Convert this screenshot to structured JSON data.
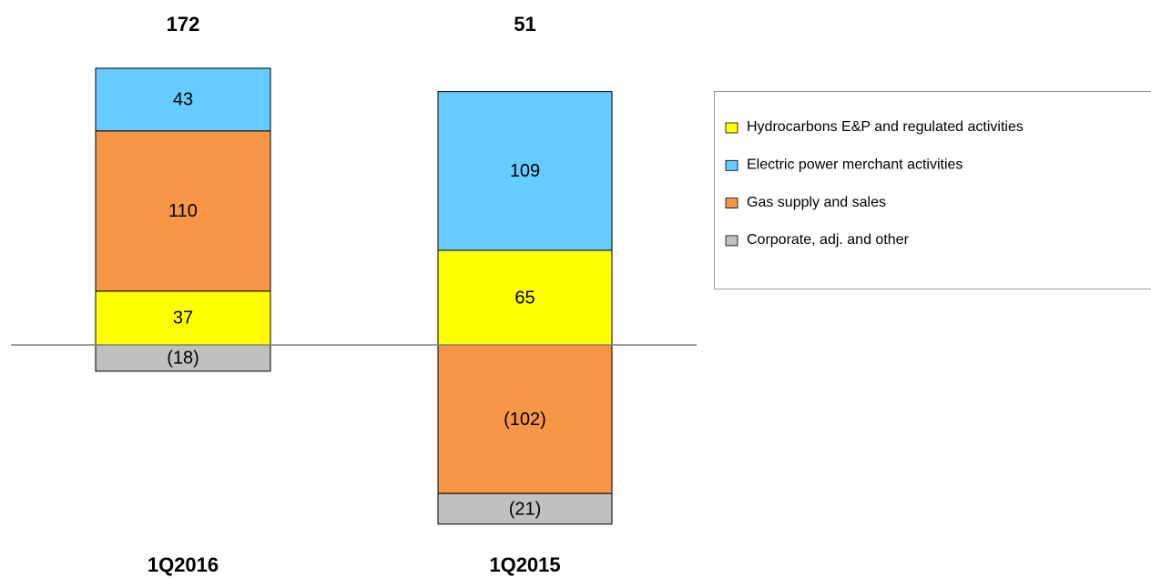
{
  "chart_data": {
    "type": "stacked_bar",
    "categories": [
      "1Q2016",
      "1Q2015"
    ],
    "totals": [
      172,
      51
    ],
    "series": [
      {
        "name": "Hydrocarbons E&P and regulated activities",
        "color": "#ffff00",
        "values": [
          37,
          65
        ]
      },
      {
        "name": "Electric power merchant activities",
        "color": "#66ccff",
        "values": [
          43,
          109
        ]
      },
      {
        "name": "Gas supply and sales",
        "color": "#f79646",
        "values": [
          110,
          -102
        ],
        "value_labels": [
          "110",
          "(102)"
        ]
      },
      {
        "name": "Corporate, adj. and other",
        "color": "#c0c0c0",
        "values": [
          -18,
          -21
        ],
        "value_labels": [
          "(18)",
          "(21)"
        ]
      }
    ]
  }
}
